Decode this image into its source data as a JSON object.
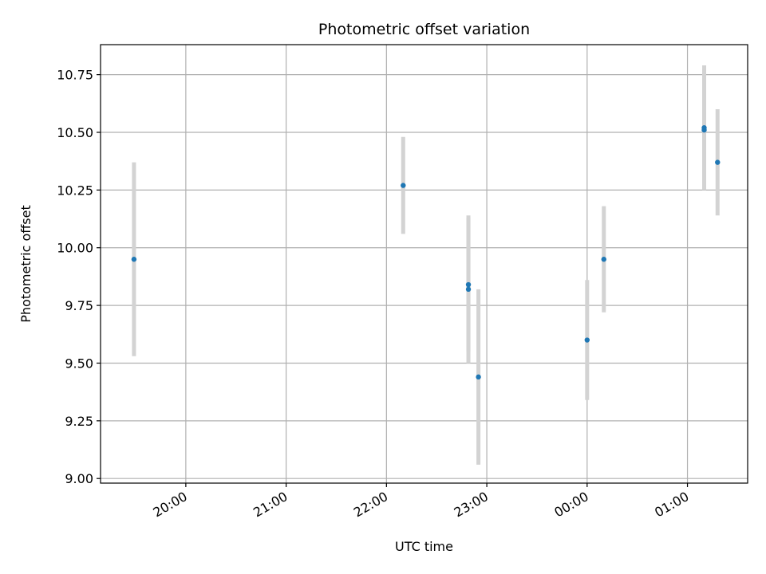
{
  "chart_data": {
    "type": "scatter",
    "title": "Photometric offset variation",
    "xlabel": "UTC time",
    "ylabel": "Photometric offset",
    "x_ticks": [
      "20:00",
      "21:00",
      "22:00",
      "23:00",
      "00:00",
      "01:00"
    ],
    "y_ticks": [
      "9.00",
      "9.25",
      "9.50",
      "9.75",
      "10.00",
      "10.25",
      "10.50",
      "10.75"
    ],
    "xlim": [
      "19:09",
      "01:36"
    ],
    "ylim": [
      8.98,
      10.88
    ],
    "grid": true,
    "series": [
      {
        "marker_color": "#1f77b4",
        "errorbar_color": "#d3d3d3",
        "points": [
          {
            "x": "19:29",
            "y": 9.95,
            "err": 0.42
          },
          {
            "x": "22:10",
            "y": 10.27,
            "err": 0.21
          },
          {
            "x": "22:49",
            "y": 9.84,
            "err": 0.29
          },
          {
            "x": "22:49",
            "y": 9.82,
            "err": 0.32
          },
          {
            "x": "22:55",
            "y": 9.44,
            "err": 0.38
          },
          {
            "x": "00:00",
            "y": 9.6,
            "err": 0.26
          },
          {
            "x": "00:10",
            "y": 9.95,
            "err": 0.23
          },
          {
            "x": "01:10",
            "y": 10.52,
            "err": 0.27
          },
          {
            "x": "01:10",
            "y": 10.51,
            "err": 0.26
          },
          {
            "x": "01:18",
            "y": 10.37,
            "err": 0.23
          }
        ]
      }
    ]
  }
}
